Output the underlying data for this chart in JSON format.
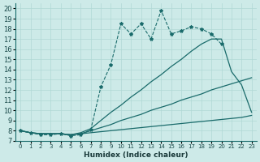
{
  "xlabel": "Humidex (Indice chaleur)",
  "bg_color": "#cdeae8",
  "line_color": "#1a6b6b",
  "grid_color": "#b0d8d5",
  "xlim": [
    -0.5,
    23.5
  ],
  "ylim": [
    7,
    20.5
  ],
  "xticks": [
    0,
    1,
    2,
    3,
    4,
    5,
    6,
    7,
    8,
    9,
    10,
    11,
    12,
    13,
    14,
    15,
    16,
    17,
    18,
    19,
    20,
    21,
    22,
    23
  ],
  "yticks": [
    7,
    8,
    9,
    10,
    11,
    12,
    13,
    14,
    15,
    16,
    17,
    18,
    19,
    20
  ],
  "line1_x": [
    0,
    1,
    2,
    3,
    4,
    5,
    6,
    7,
    8,
    9,
    10,
    11,
    12,
    13,
    14,
    15,
    16,
    17,
    18,
    19,
    20
  ],
  "line1_y": [
    8.0,
    7.8,
    7.6,
    7.6,
    7.7,
    7.5,
    7.6,
    8.1,
    12.3,
    14.5,
    18.5,
    17.5,
    18.5,
    17.0,
    19.8,
    17.5,
    17.8,
    18.2,
    18.0,
    17.5,
    16.5
  ],
  "line2_x": [
    0,
    1,
    2,
    3,
    4,
    5,
    6,
    7,
    8,
    9,
    10,
    11,
    12,
    13,
    14,
    15,
    16,
    17,
    18,
    19,
    20,
    21,
    22,
    23
  ],
  "line2_y": [
    8.0,
    7.8,
    7.7,
    7.7,
    7.7,
    7.6,
    7.8,
    8.2,
    9.0,
    9.8,
    10.5,
    11.3,
    12.0,
    12.8,
    13.5,
    14.3,
    15.0,
    15.8,
    16.5,
    17.0,
    17.0,
    13.8,
    12.5,
    9.8
  ],
  "line3_x": [
    0,
    1,
    2,
    3,
    4,
    5,
    6,
    7,
    8,
    9,
    10,
    11,
    12,
    13,
    14,
    15,
    16,
    17,
    18,
    19,
    20,
    21,
    22,
    23
  ],
  "line3_y": [
    8.0,
    7.8,
    7.7,
    7.7,
    7.7,
    7.6,
    7.7,
    8.0,
    8.3,
    8.6,
    9.0,
    9.3,
    9.6,
    10.0,
    10.3,
    10.6,
    11.0,
    11.3,
    11.6,
    12.0,
    12.3,
    12.6,
    12.9,
    13.2
  ],
  "line4_x": [
    0,
    1,
    2,
    3,
    4,
    5,
    6,
    7,
    8,
    9,
    10,
    11,
    12,
    13,
    14,
    15,
    16,
    17,
    18,
    19,
    20,
    21,
    22,
    23
  ],
  "line4_y": [
    8.0,
    7.8,
    7.7,
    7.7,
    7.7,
    7.6,
    7.7,
    7.8,
    7.9,
    8.0,
    8.1,
    8.2,
    8.3,
    8.4,
    8.5,
    8.6,
    8.7,
    8.8,
    8.9,
    9.0,
    9.1,
    9.2,
    9.3,
    9.5
  ]
}
